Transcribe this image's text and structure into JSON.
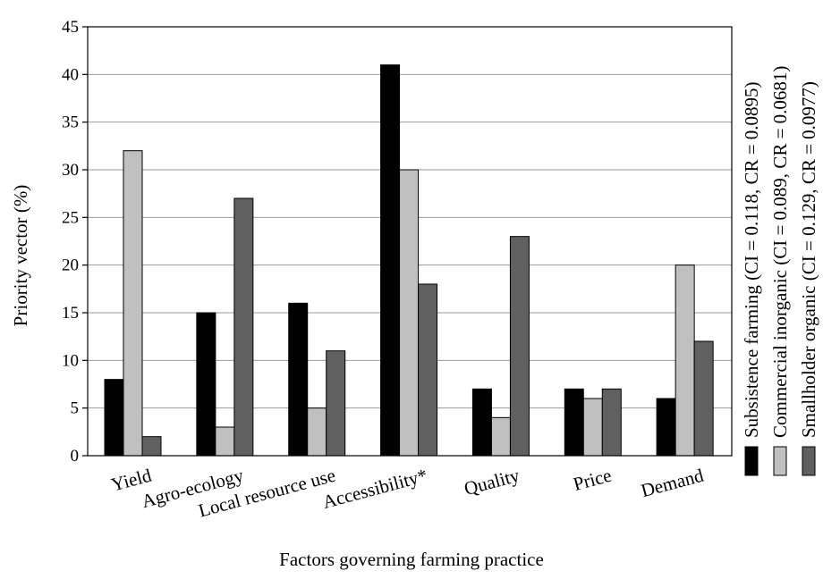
{
  "chart_data": {
    "type": "bar",
    "title": "",
    "xlabel": "Factors governing farming practice",
    "ylabel": "Priority vector (%)",
    "ylim": [
      0,
      45
    ],
    "yticks": [
      0,
      5,
      10,
      15,
      20,
      25,
      30,
      35,
      40,
      45
    ],
    "grid": "horizontal",
    "legend_position": "right (vertical)",
    "categories": [
      "Yield",
      "Agro-ecology",
      "Local resource use",
      "Accessibility*",
      "Quality",
      "Price",
      "Demand"
    ],
    "series": [
      {
        "name": "Subsistence farming (CI = 0.118, CR = 0.0895)",
        "color": "#000000",
        "values": [
          8,
          15,
          16,
          41,
          7,
          7,
          6
        ]
      },
      {
        "name": "Commercial inorganic (CI = 0.089, CR = 0.0681)",
        "color": "#c0c0c0",
        "values": [
          32,
          3,
          5,
          30,
          4,
          6,
          20
        ]
      },
      {
        "name": "Smallholder organic (CI = 0.129, CR = 0.0977)",
        "color": "#606060",
        "values": [
          2,
          27,
          11,
          18,
          23,
          7,
          12
        ]
      }
    ]
  }
}
